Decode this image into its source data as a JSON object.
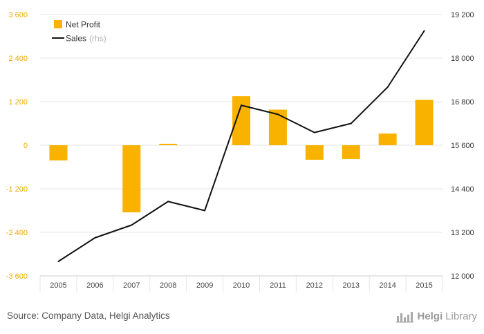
{
  "footer": {
    "source": "Source: Company Data, Helgi Analytics"
  },
  "brand": {
    "name": "Helgi",
    "suffix": "Library",
    "logo_icon": "bar-chart-logo-icon"
  },
  "colors": {
    "bar": "#f9b200",
    "line": "#111111",
    "left_axis_text": "#f2a900",
    "grid": "#e6e6e6"
  },
  "chart_data": {
    "type": "bar",
    "categories": [
      "2005",
      "2006",
      "2007",
      "2008",
      "2009",
      "2010",
      "2011",
      "2012",
      "2013",
      "2014",
      "2015"
    ],
    "series": [
      {
        "name": "Net Profit",
        "type": "bar",
        "axis": "left",
        "values": [
          -420,
          0,
          -1850,
          40,
          0,
          1350,
          980,
          -400,
          -380,
          320,
          1250
        ]
      },
      {
        "name": "Sales",
        "name_suffix": "(rhs)",
        "type": "line",
        "axis": "right",
        "values": [
          12400,
          13050,
          13400,
          14050,
          13800,
          16700,
          16450,
          15950,
          16200,
          17200,
          18750
        ]
      }
    ],
    "left_axis": {
      "min": -3600,
      "max": 3600,
      "ticks": [
        "3 600",
        "2 400",
        "1 200",
        "0",
        "-1 200",
        "-2 400",
        "-3 600"
      ],
      "tick_values": [
        3600,
        2400,
        1200,
        0,
        -1200,
        -2400,
        -3600
      ]
    },
    "right_axis": {
      "min": 12000,
      "max": 19200,
      "ticks": [
        "19 200",
        "18 000",
        "16 800",
        "15 600",
        "14 400",
        "13 200",
        "12 000"
      ],
      "tick_values": [
        19200,
        18000,
        16800,
        15600,
        14400,
        13200,
        12000
      ]
    },
    "legend_position": "top-left",
    "grid": true
  }
}
